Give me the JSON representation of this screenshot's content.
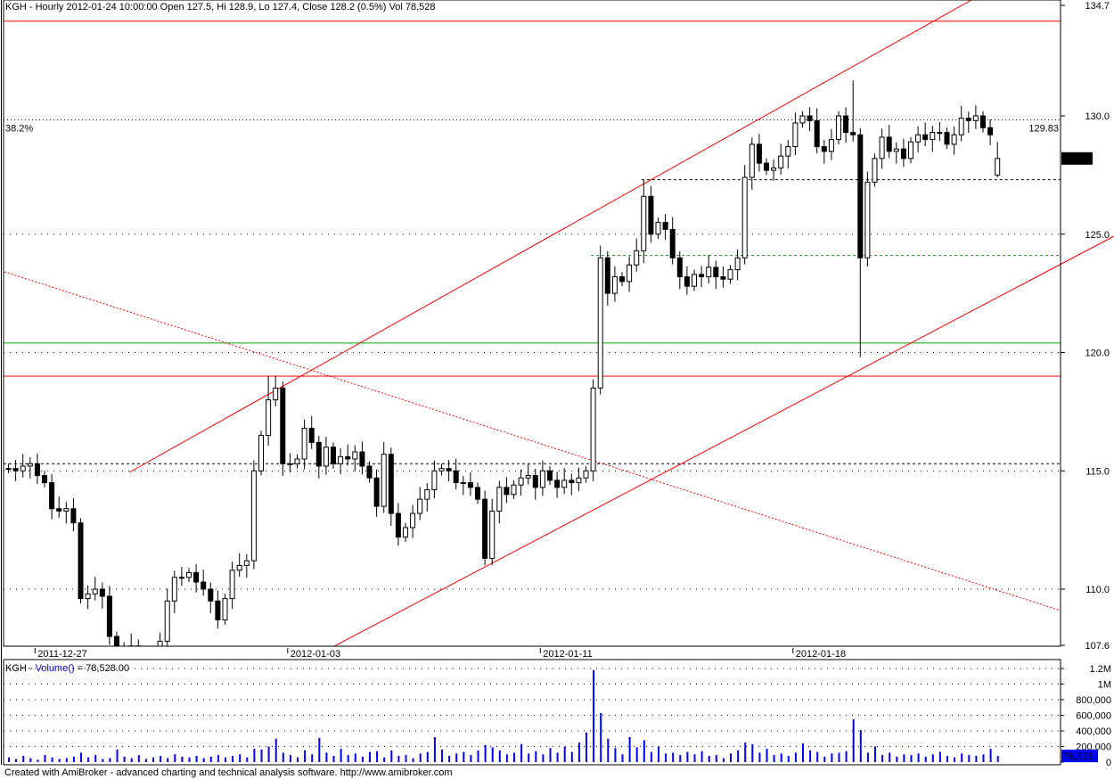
{
  "header": {
    "title": "KGH - Hourly 2012-01-24 10:00:00 Open 127.5, Hi 128.9, Lo 127.4, Close 128.2 (0.5%) Vol 78,528"
  },
  "volume_pane": {
    "prefix": "KGH - ",
    "func": "Volume()",
    "suffix": " = 78,528.00",
    "current_label": "78,528"
  },
  "footer": "Created with AmiBroker - advanced charting and technical analysis software. http://www.amibroker.com",
  "colors": {
    "up_candle": "#ffffff",
    "down_candle": "#000000",
    "trend": "#ff0000",
    "support": "#00a000",
    "volume": "#0000ff",
    "fib_label": "#0000ff"
  },
  "chart_data": [
    {
      "type": "candlestick",
      "title": "KGH - Hourly",
      "ylim": [
        107.6,
        134.7
      ],
      "y_ticks": [
        "134.7",
        "130.0",
        "125.0",
        "120.0",
        "115.0",
        "110.0",
        "107.6"
      ],
      "y_tick_values": [
        134.7,
        130,
        125,
        120,
        115,
        110,
        107.6
      ],
      "x_ticks": [
        {
          "label": "2011-12-27",
          "bar": 3
        },
        {
          "label": "2012-01-03",
          "bar": 38
        },
        {
          "label": "2012-01-11",
          "bar": 73
        },
        {
          "label": "2012-01-18",
          "bar": 108
        }
      ],
      "last_price_label": "128.2",
      "last_bar": {
        "open": 127.5,
        "high": 128.9,
        "low": 127.4,
        "close": 128.2
      },
      "closes": [
        115.1,
        115,
        115.2,
        115.3,
        114.8,
        114.5,
        113.4,
        113.3,
        113.4,
        112.8,
        109.6,
        109.8,
        110,
        109.7,
        108,
        107.4,
        107.3,
        107.6,
        107,
        107,
        107,
        107.8,
        109.5,
        110.5,
        110.5,
        110.7,
        110.3,
        110,
        109.5,
        108.7,
        109.6,
        110.8,
        111,
        111.2,
        115,
        116.5,
        118,
        118.5,
        115.3,
        115.3,
        115.5,
        116.8,
        116.2,
        115.2,
        116,
        115.3,
        115.6,
        115.5,
        115.8,
        115.2,
        114.7,
        113.5,
        115.7,
        113.2,
        112.2,
        112.6,
        113.2,
        113.8,
        114.2,
        115,
        115.1,
        115,
        114.5,
        114.5,
        114.3,
        113.8,
        111.3,
        113.3,
        114.3,
        114,
        114.4,
        114.7,
        114.8,
        114.3,
        115,
        114.6,
        114.3,
        114.6,
        114.5,
        114.7,
        115,
        118.5,
        124,
        122.5,
        123.2,
        123,
        123.7,
        124.3,
        126.6,
        125,
        125.5,
        125.2,
        124,
        123.2,
        122.8,
        123.3,
        123.2,
        123.6,
        123.2,
        123.1,
        123.5,
        124,
        127.4,
        128.8,
        128,
        127.7,
        127.8,
        128.3,
        128.7,
        129.7,
        130,
        129.8,
        128.7,
        128.5,
        129,
        130,
        129.3,
        129.2,
        124,
        127.2,
        128.2,
        129.1,
        128.5,
        128.6,
        128.2,
        128.9,
        129.2,
        129,
        129.3,
        129.3,
        128.8,
        129.2,
        129.9,
        129.8,
        130,
        129.5,
        129.2,
        128.2
      ],
      "wick_overrides": [
        {
          "bar": 36,
          "high": 119.0
        },
        {
          "bar": 66,
          "low": 111.0
        },
        {
          "bar": 88,
          "high": 127.3
        },
        {
          "bar": 117,
          "high": 131.5
        },
        {
          "bar": 118,
          "low": 119.8
        },
        {
          "bar": 137,
          "low": 127.4,
          "high": 128.9
        }
      ],
      "lines": [
        {
          "name": "resistance-top",
          "style": "solid",
          "color": "#ff0000",
          "y": 134.0
        },
        {
          "name": "fib-38-2",
          "style": "dotted",
          "color": "#000000",
          "y": 129.83,
          "left_label": "38.2%",
          "right_label": "129.83"
        },
        {
          "name": "level-127-3",
          "style": "dashed",
          "color": "#000000",
          "y": 127.3,
          "from_bar": 88
        },
        {
          "name": "level-124-1",
          "style": "dashed",
          "color": "#00a000",
          "y": 124.1,
          "from_bar": 81
        },
        {
          "name": "support-green",
          "style": "solid",
          "color": "#00a000",
          "y": 120.4
        },
        {
          "name": "support-red",
          "style": "solid",
          "color": "#ff0000",
          "y": 119.0
        },
        {
          "name": "level-115-3",
          "style": "dashed",
          "color": "#000000",
          "y": 115.3
        }
      ]
    },
    {
      "type": "bar",
      "title": "Volume()",
      "ylim": [
        0,
        1200000
      ],
      "y_ticks": [
        "1.2M",
        "1M",
        "800,000",
        "600,000",
        "400,000",
        "200,000",
        "0"
      ],
      "y_tick_values": [
        1200000,
        1000000,
        800000,
        600000,
        400000,
        200000,
        0
      ],
      "values": [
        60000,
        40000,
        80000,
        50000,
        30000,
        90000,
        60000,
        40000,
        50000,
        70000,
        120000,
        60000,
        90000,
        40000,
        50000,
        160000,
        70000,
        50000,
        90000,
        40000,
        60000,
        80000,
        50000,
        100000,
        70000,
        60000,
        80000,
        50000,
        70000,
        90000,
        60000,
        80000,
        100000,
        60000,
        170000,
        160000,
        200000,
        300000,
        120000,
        90000,
        60000,
        150000,
        100000,
        310000,
        120000,
        80000,
        170000,
        90000,
        110000,
        70000,
        130000,
        140000,
        60000,
        150000,
        80000,
        90000,
        50000,
        110000,
        130000,
        320000,
        160000,
        80000,
        110000,
        130000,
        90000,
        150000,
        220000,
        190000,
        150000,
        100000,
        120000,
        230000,
        110000,
        140000,
        100000,
        180000,
        120000,
        200000,
        130000,
        250000,
        380000,
        1180000,
        630000,
        300000,
        180000,
        100000,
        320000,
        190000,
        280000,
        130000,
        200000,
        110000,
        120000,
        90000,
        130000,
        100000,
        140000,
        80000,
        90000,
        50000,
        110000,
        150000,
        250000,
        230000,
        120000,
        170000,
        90000,
        110000,
        80000,
        120000,
        240000,
        150000,
        130000,
        70000,
        110000,
        120000,
        140000,
        550000,
        410000,
        120000,
        200000,
        90000,
        120000,
        70000,
        100000,
        90000,
        110000,
        70000,
        100000,
        130000,
        80000,
        60000,
        110000,
        90000,
        80000,
        100000,
        170000,
        78528
      ]
    }
  ]
}
